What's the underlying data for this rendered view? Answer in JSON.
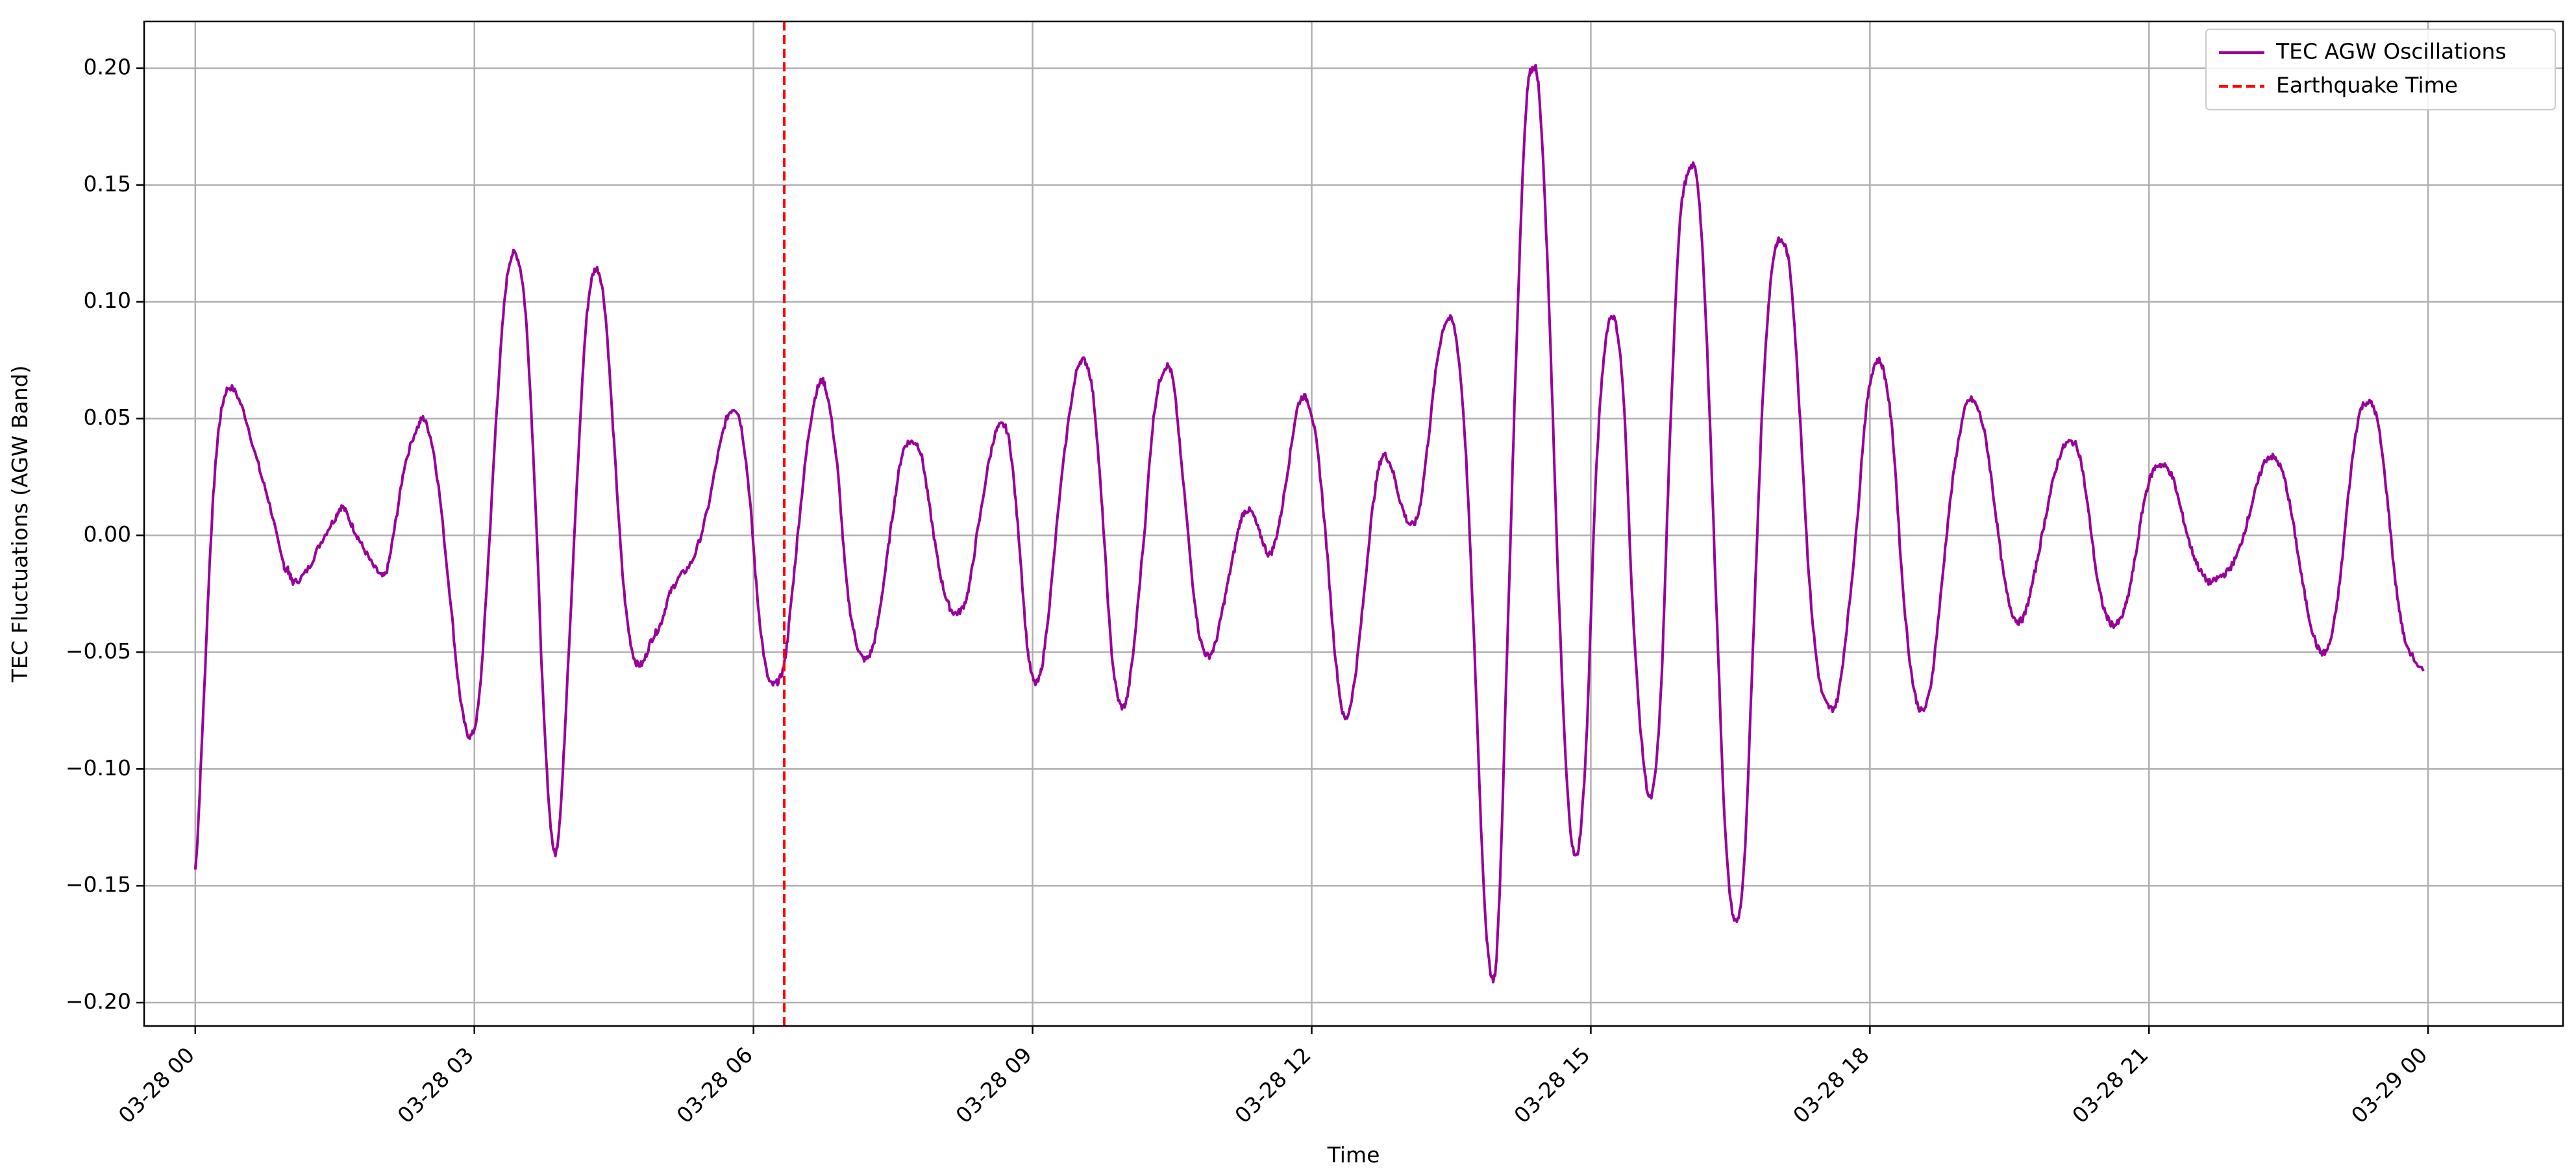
{
  "chart_data": {
    "type": "line",
    "title": "",
    "xlabel": "Time",
    "ylabel": "TEC Fluctuations (AGW Band)",
    "x_start": "03-28 00",
    "x_end": "03-29 00",
    "x_ticks": [
      "03-28 00",
      "03-28 03",
      "03-28 06",
      "03-28 09",
      "03-28 12",
      "03-28 15",
      "03-28 18",
      "03-28 21",
      "03-29 00"
    ],
    "x_tick_hours": [
      0,
      3,
      6,
      9,
      12,
      15,
      18,
      21,
      24
    ],
    "x_range_hours": [
      -0.55,
      25.45
    ],
    "ylim": [
      -0.21,
      0.22
    ],
    "y_ticks": [
      "−0.20",
      "−0.15",
      "−0.10",
      "−0.05",
      "0.00",
      "0.05",
      "0.10",
      "0.15",
      "0.20"
    ],
    "y_tick_values": [
      -0.2,
      -0.15,
      -0.1,
      -0.05,
      0.0,
      0.05,
      0.1,
      0.15,
      0.2
    ],
    "grid": true,
    "legend_position": "top-right",
    "earthquake_time_hours": 6.33,
    "series": [
      {
        "name": "TEC AGW Oscillations",
        "color": "#990099",
        "style": "solid",
        "keypoints": [
          [
            0.0,
            -0.143
          ],
          [
            0.08,
            -0.08
          ],
          [
            0.17,
            0.0
          ],
          [
            0.25,
            0.045
          ],
          [
            0.35,
            0.063
          ],
          [
            0.5,
            0.055
          ],
          [
            0.68,
            0.03
          ],
          [
            0.8,
            0.013
          ],
          [
            0.95,
            -0.012
          ],
          [
            1.0,
            -0.015
          ],
          [
            1.05,
            -0.02
          ],
          [
            1.2,
            -0.015
          ],
          [
            1.35,
            -0.003
          ],
          [
            1.5,
            0.007
          ],
          [
            1.58,
            0.012
          ],
          [
            1.7,
            0.003
          ],
          [
            1.8,
            -0.005
          ],
          [
            1.95,
            -0.015
          ],
          [
            2.05,
            -0.016
          ],
          [
            2.15,
            0.005
          ],
          [
            2.25,
            0.03
          ],
          [
            2.4,
            0.047
          ],
          [
            2.48,
            0.048
          ],
          [
            2.6,
            0.025
          ],
          [
            2.75,
            -0.03
          ],
          [
            2.85,
            -0.07
          ],
          [
            2.95,
            -0.086
          ],
          [
            3.05,
            -0.07
          ],
          [
            3.15,
            -0.01
          ],
          [
            3.25,
            0.06
          ],
          [
            3.35,
            0.11
          ],
          [
            3.45,
            0.12
          ],
          [
            3.55,
            0.095
          ],
          [
            3.65,
            0.02
          ],
          [
            3.75,
            -0.08
          ],
          [
            3.85,
            -0.134
          ],
          [
            3.92,
            -0.12
          ],
          [
            4.0,
            -0.06
          ],
          [
            4.1,
            0.02
          ],
          [
            4.2,
            0.09
          ],
          [
            4.3,
            0.114
          ],
          [
            4.4,
            0.098
          ],
          [
            4.5,
            0.04
          ],
          [
            4.6,
            -0.02
          ],
          [
            4.7,
            -0.05
          ],
          [
            4.8,
            -0.055
          ],
          [
            4.9,
            -0.045
          ],
          [
            5.0,
            -0.038
          ],
          [
            5.1,
            -0.025
          ],
          [
            5.2,
            -0.018
          ],
          [
            5.35,
            -0.01
          ],
          [
            5.5,
            0.01
          ],
          [
            5.65,
            0.04
          ],
          [
            5.75,
            0.053
          ],
          [
            5.85,
            0.05
          ],
          [
            5.95,
            0.02
          ],
          [
            6.05,
            -0.03
          ],
          [
            6.15,
            -0.06
          ],
          [
            6.25,
            -0.063
          ],
          [
            6.33,
            -0.055
          ],
          [
            6.4,
            -0.03
          ],
          [
            6.5,
            0.01
          ],
          [
            6.6,
            0.045
          ],
          [
            6.7,
            0.064
          ],
          [
            6.78,
            0.062
          ],
          [
            6.9,
            0.03
          ],
          [
            7.0,
            -0.02
          ],
          [
            7.1,
            -0.045
          ],
          [
            7.2,
            -0.053
          ],
          [
            7.3,
            -0.045
          ],
          [
            7.4,
            -0.02
          ],
          [
            7.5,
            0.01
          ],
          [
            7.6,
            0.035
          ],
          [
            7.7,
            0.04
          ],
          [
            7.8,
            0.035
          ],
          [
            7.9,
            0.01
          ],
          [
            8.0,
            -0.015
          ],
          [
            8.1,
            -0.03
          ],
          [
            8.2,
            -0.033
          ],
          [
            8.3,
            -0.025
          ],
          [
            8.4,
            0.0
          ],
          [
            8.55,
            0.035
          ],
          [
            8.65,
            0.047
          ],
          [
            8.75,
            0.04
          ],
          [
            8.85,
            0.0
          ],
          [
            8.95,
            -0.05
          ],
          [
            9.05,
            -0.063
          ],
          [
            9.15,
            -0.04
          ],
          [
            9.3,
            0.02
          ],
          [
            9.45,
            0.065
          ],
          [
            9.55,
            0.075
          ],
          [
            9.65,
            0.06
          ],
          [
            9.75,
            0.01
          ],
          [
            9.85,
            -0.05
          ],
          [
            9.95,
            -0.073
          ],
          [
            10.05,
            -0.06
          ],
          [
            10.2,
            0.0
          ],
          [
            10.3,
            0.05
          ],
          [
            10.4,
            0.07
          ],
          [
            10.5,
            0.068
          ],
          [
            10.6,
            0.03
          ],
          [
            10.75,
            -0.03
          ],
          [
            10.85,
            -0.05
          ],
          [
            10.95,
            -0.048
          ],
          [
            11.05,
            -0.03
          ],
          [
            11.15,
            -0.01
          ],
          [
            11.25,
            0.008
          ],
          [
            11.35,
            0.01
          ],
          [
            11.45,
            0.0
          ],
          [
            11.55,
            -0.008
          ],
          [
            11.65,
            0.005
          ],
          [
            11.75,
            0.03
          ],
          [
            11.85,
            0.055
          ],
          [
            11.95,
            0.058
          ],
          [
            12.05,
            0.04
          ],
          [
            12.15,
            0.0
          ],
          [
            12.25,
            -0.05
          ],
          [
            12.35,
            -0.078
          ],
          [
            12.45,
            -0.065
          ],
          [
            12.55,
            -0.03
          ],
          [
            12.65,
            0.01
          ],
          [
            12.75,
            0.033
          ],
          [
            12.85,
            0.03
          ],
          [
            12.95,
            0.015
          ],
          [
            13.05,
            0.005
          ],
          [
            13.15,
            0.01
          ],
          [
            13.25,
            0.04
          ],
          [
            13.35,
            0.075
          ],
          [
            13.45,
            0.092
          ],
          [
            13.55,
            0.085
          ],
          [
            13.65,
            0.04
          ],
          [
            13.75,
            -0.05
          ],
          [
            13.85,
            -0.15
          ],
          [
            13.93,
            -0.188
          ],
          [
            14.0,
            -0.17
          ],
          [
            14.1,
            -0.05
          ],
          [
            14.2,
            0.08
          ],
          [
            14.3,
            0.18
          ],
          [
            14.38,
            0.2
          ],
          [
            14.45,
            0.185
          ],
          [
            14.55,
            0.1
          ],
          [
            14.65,
            -0.02
          ],
          [
            14.75,
            -0.11
          ],
          [
            14.85,
            -0.137
          ],
          [
            14.95,
            -0.09
          ],
          [
            15.05,
            0.02
          ],
          [
            15.15,
            0.08
          ],
          [
            15.25,
            0.093
          ],
          [
            15.35,
            0.06
          ],
          [
            15.45,
            -0.03
          ],
          [
            15.55,
            -0.09
          ],
          [
            15.65,
            -0.112
          ],
          [
            15.75,
            -0.07
          ],
          [
            15.85,
            0.04
          ],
          [
            15.95,
            0.13
          ],
          [
            16.05,
            0.155
          ],
          [
            16.15,
            0.15
          ],
          [
            16.25,
            0.08
          ],
          [
            16.35,
            -0.03
          ],
          [
            16.45,
            -0.13
          ],
          [
            16.55,
            -0.165
          ],
          [
            16.65,
            -0.14
          ],
          [
            16.75,
            -0.04
          ],
          [
            16.85,
            0.06
          ],
          [
            16.95,
            0.115
          ],
          [
            17.05,
            0.126
          ],
          [
            17.15,
            0.11
          ],
          [
            17.25,
            0.05
          ],
          [
            17.35,
            -0.02
          ],
          [
            17.45,
            -0.06
          ],
          [
            17.55,
            -0.073
          ],
          [
            17.65,
            -0.07
          ],
          [
            17.75,
            -0.04
          ],
          [
            17.85,
            0.0
          ],
          [
            17.95,
            0.05
          ],
          [
            18.05,
            0.073
          ],
          [
            18.15,
            0.07
          ],
          [
            18.25,
            0.04
          ],
          [
            18.35,
            -0.02
          ],
          [
            18.45,
            -0.06
          ],
          [
            18.55,
            -0.075
          ],
          [
            18.65,
            -0.065
          ],
          [
            18.75,
            -0.03
          ],
          [
            18.85,
            0.01
          ],
          [
            18.95,
            0.04
          ],
          [
            19.05,
            0.057
          ],
          [
            19.15,
            0.055
          ],
          [
            19.25,
            0.04
          ],
          [
            19.35,
            0.01
          ],
          [
            19.45,
            -0.02
          ],
          [
            19.55,
            -0.035
          ],
          [
            19.65,
            -0.035
          ],
          [
            19.75,
            -0.02
          ],
          [
            19.85,
            0.0
          ],
          [
            19.95,
            0.02
          ],
          [
            20.05,
            0.035
          ],
          [
            20.15,
            0.04
          ],
          [
            20.25,
            0.035
          ],
          [
            20.35,
            0.01
          ],
          [
            20.45,
            -0.02
          ],
          [
            20.55,
            -0.035
          ],
          [
            20.65,
            -0.038
          ],
          [
            20.75,
            -0.03
          ],
          [
            20.85,
            -0.01
          ],
          [
            20.95,
            0.015
          ],
          [
            21.05,
            0.028
          ],
          [
            21.15,
            0.03
          ],
          [
            21.25,
            0.025
          ],
          [
            21.35,
            0.01
          ],
          [
            21.45,
            -0.005
          ],
          [
            21.55,
            -0.015
          ],
          [
            21.65,
            -0.02
          ],
          [
            21.75,
            -0.018
          ],
          [
            21.85,
            -0.015
          ],
          [
            21.95,
            -0.008
          ],
          [
            22.05,
            0.005
          ],
          [
            22.15,
            0.02
          ],
          [
            22.25,
            0.032
          ],
          [
            22.35,
            0.033
          ],
          [
            22.45,
            0.025
          ],
          [
            22.55,
            0.005
          ],
          [
            22.65,
            -0.02
          ],
          [
            22.75,
            -0.04
          ],
          [
            22.85,
            -0.05
          ],
          [
            22.95,
            -0.045
          ],
          [
            23.05,
            -0.02
          ],
          [
            23.15,
            0.02
          ],
          [
            23.25,
            0.05
          ],
          [
            23.35,
            0.057
          ],
          [
            23.45,
            0.05
          ],
          [
            23.55,
            0.02
          ],
          [
            23.65,
            -0.02
          ],
          [
            23.75,
            -0.045
          ],
          [
            23.95,
            -0.058
          ]
        ]
      },
      {
        "name": "Earthquake Time",
        "color": "#ff0000",
        "style": "dashed",
        "type": "vline"
      }
    ]
  }
}
